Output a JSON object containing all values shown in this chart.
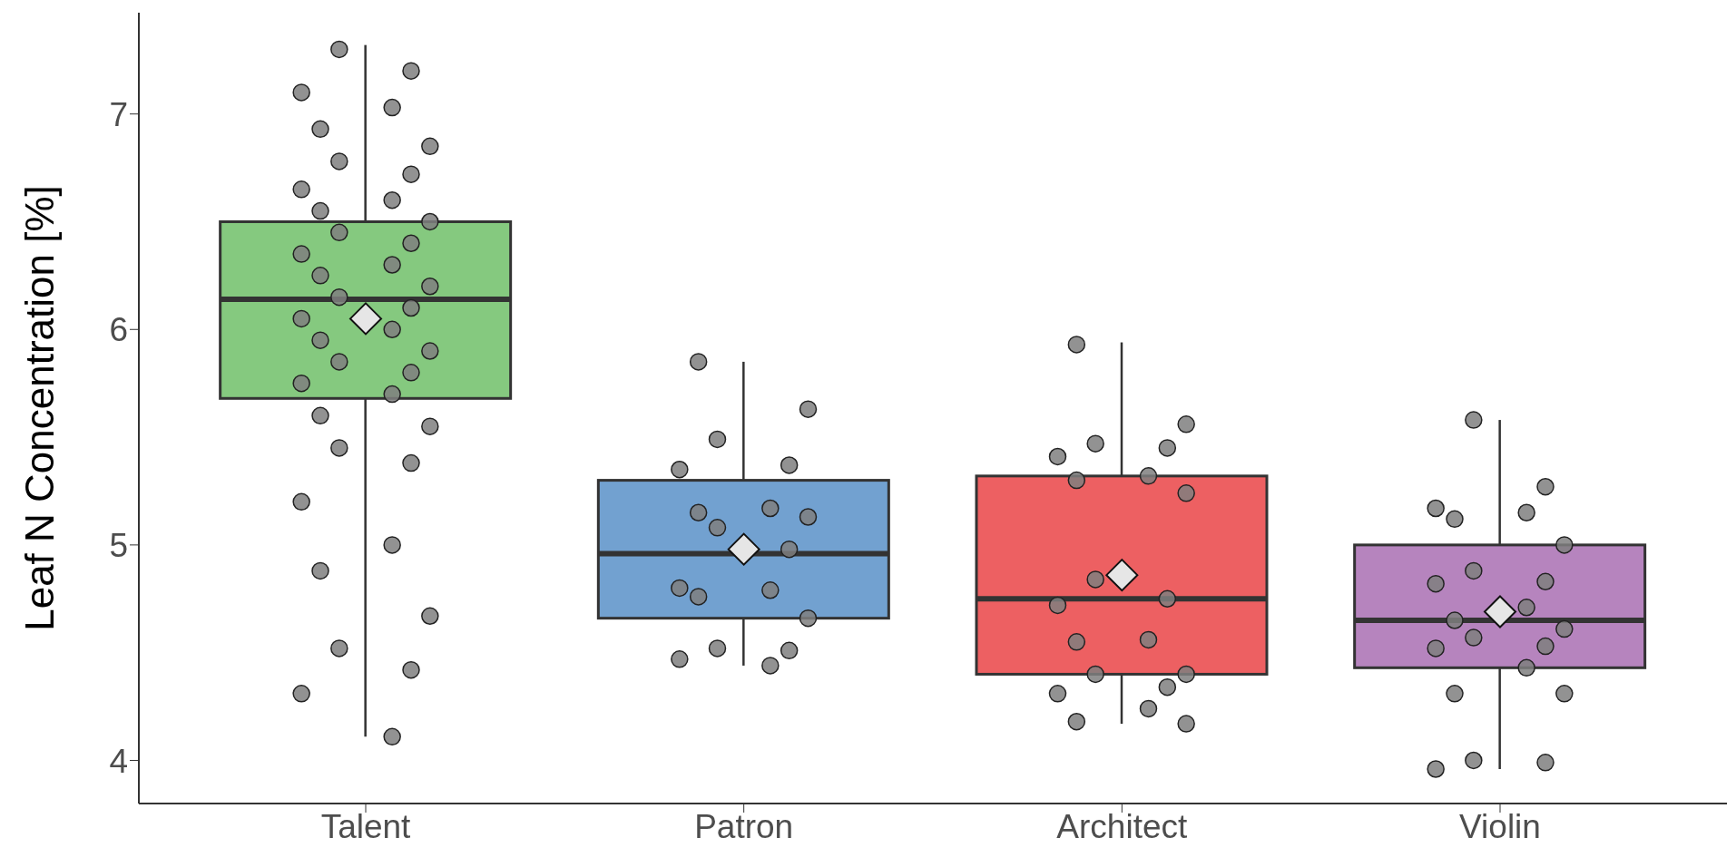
{
  "chart_data": {
    "type": "box",
    "ylabel": "Leaf N Concentration  [%]",
    "categories": [
      "Talent",
      "Patron",
      "Architect",
      "Violin"
    ],
    "colors": [
      "#7bc474",
      "#6699cc",
      "#eb5255",
      "#b07ab8"
    ],
    "boxes": [
      {
        "low": 4.11,
        "q1": 5.68,
        "median": 6.14,
        "q3": 6.5,
        "high": 7.32,
        "mean": 6.05
      },
      {
        "low": 4.44,
        "q1": 4.66,
        "median": 4.96,
        "q3": 5.3,
        "high": 5.85,
        "mean": 4.98
      },
      {
        "low": 4.17,
        "q1": 4.4,
        "median": 4.75,
        "q3": 5.32,
        "high": 5.94,
        "mean": 4.86
      },
      {
        "low": 3.96,
        "q1": 4.43,
        "median": 4.65,
        "q3": 5.0,
        "high": 5.58,
        "mean": 4.69
      }
    ],
    "ylim": [
      3.8,
      7.47
    ],
    "yticks": [
      4,
      5,
      6,
      7
    ],
    "grid": false,
    "series": [
      {
        "type": "scatter",
        "color": "#7f7f7f",
        "x": [
          "Talent",
          "Talent",
          "Talent",
          "Talent",
          "Talent",
          "Talent",
          "Talent",
          "Talent",
          "Talent",
          "Talent",
          "Talent",
          "Talent",
          "Talent",
          "Talent",
          "Talent",
          "Talent",
          "Talent",
          "Talent",
          "Talent",
          "Talent",
          "Talent",
          "Talent",
          "Talent",
          "Talent",
          "Talent",
          "Talent",
          "Talent",
          "Talent",
          "Talent",
          "Talent",
          "Talent",
          "Talent",
          "Talent",
          "Talent",
          "Talent",
          "Talent",
          "Talent",
          "Talent",
          "Talent",
          "Talent",
          "Patron",
          "Patron",
          "Patron",
          "Patron",
          "Patron",
          "Patron",
          "Patron",
          "Patron",
          "Patron",
          "Patron",
          "Patron",
          "Patron",
          "Patron",
          "Patron",
          "Patron",
          "Patron",
          "Patron",
          "Patron",
          "Architect",
          "Architect",
          "Architect",
          "Architect",
          "Architect",
          "Architect",
          "Architect",
          "Architect",
          "Architect",
          "Architect",
          "Architect",
          "Architect",
          "Architect",
          "Architect",
          "Architect",
          "Architect",
          "Architect",
          "Architect",
          "Architect",
          "Architect",
          "Violin",
          "Violin",
          "Violin",
          "Violin",
          "Violin",
          "Violin",
          "Violin",
          "Violin",
          "Violin",
          "Violin",
          "Violin",
          "Violin",
          "Violin",
          "Violin",
          "Violin",
          "Violin",
          "Violin",
          "Violin",
          "Violin",
          "Violin",
          "Violin"
        ],
        "values": [
          7.3,
          7.2,
          7.1,
          7.03,
          6.93,
          6.85,
          6.78,
          6.72,
          6.65,
          6.6,
          6.55,
          6.5,
          6.45,
          6.4,
          6.35,
          6.3,
          6.25,
          6.2,
          6.15,
          6.1,
          6.05,
          6.0,
          5.95,
          5.9,
          5.85,
          5.8,
          5.75,
          5.7,
          5.6,
          5.55,
          5.45,
          5.38,
          5.2,
          5.0,
          4.88,
          4.67,
          4.52,
          4.42,
          4.31,
          4.11,
          5.85,
          5.63,
          5.49,
          5.37,
          5.35,
          5.17,
          5.15,
          5.13,
          5.08,
          4.98,
          4.8,
          4.79,
          4.76,
          4.66,
          4.52,
          4.51,
          4.47,
          4.44,
          5.93,
          5.56,
          5.47,
          5.45,
          5.41,
          5.32,
          5.3,
          5.24,
          4.84,
          4.75,
          4.72,
          4.56,
          4.55,
          4.4,
          4.4,
          4.34,
          4.31,
          4.24,
          4.18,
          4.17,
          5.58,
          5.27,
          5.17,
          5.15,
          5.12,
          5.0,
          4.88,
          4.83,
          4.82,
          4.71,
          4.65,
          4.61,
          4.57,
          4.53,
          4.52,
          4.43,
          4.31,
          4.31,
          4.0,
          3.99,
          3.96
        ]
      }
    ]
  }
}
